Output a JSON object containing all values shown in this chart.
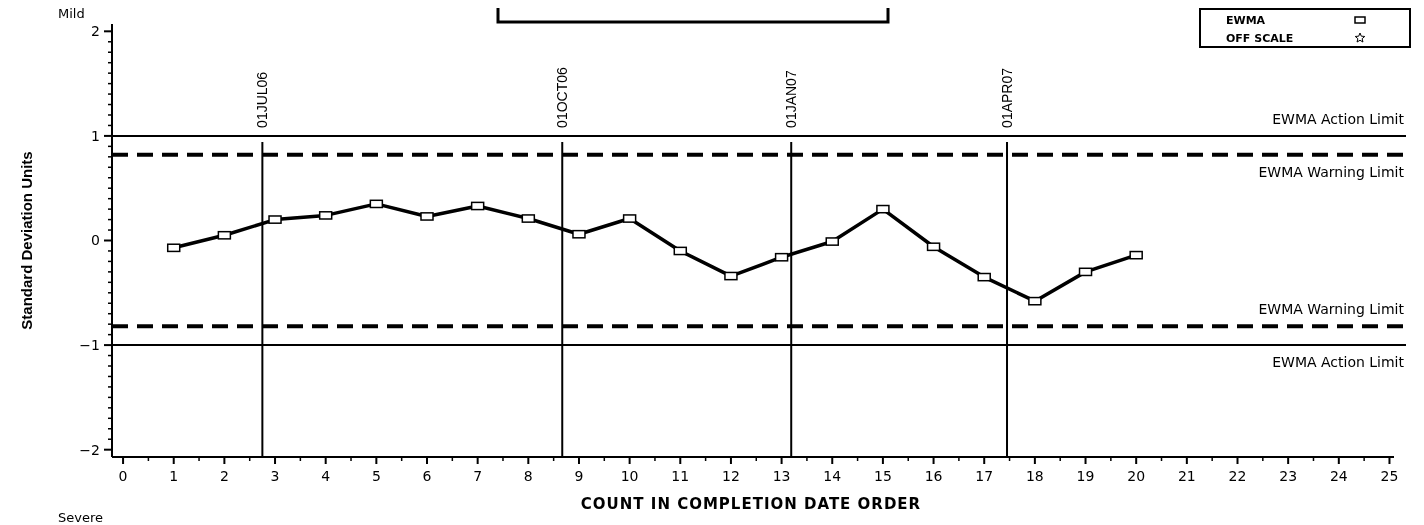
{
  "chart_data": {
    "type": "line",
    "xlabel": "COUNT IN COMPLETION DATE ORDER",
    "ylabel": "Standard Deviation Units",
    "x": [
      1,
      2,
      3,
      4,
      5,
      6,
      7,
      8,
      9,
      10,
      11,
      12,
      13,
      14,
      15,
      16,
      17,
      18,
      19,
      20
    ],
    "series": [
      {
        "name": "EWMA",
        "color": "#000000",
        "marker": "square",
        "values": [
          -0.07,
          0.05,
          0.2,
          0.24,
          0.35,
          0.23,
          0.33,
          0.21,
          0.06,
          0.21,
          -0.1,
          -0.34,
          -0.16,
          -0.01,
          0.3,
          -0.06,
          -0.35,
          -0.58,
          -0.3,
          -0.14
        ]
      },
      {
        "name": "OFF SCALE",
        "color": "#000000",
        "marker": "star",
        "values": [
          null,
          null,
          null,
          null,
          null,
          null,
          null,
          null,
          null,
          null,
          null,
          null,
          null,
          null,
          null,
          null,
          null,
          null,
          null,
          null
        ]
      }
    ],
    "xlim": [
      -0.1,
      25.05
    ],
    "xticks": [
      0,
      1,
      2,
      3,
      4,
      5,
      6,
      7,
      8,
      9,
      10,
      11,
      12,
      13,
      14,
      15,
      16,
      17,
      18,
      19,
      20,
      21,
      22,
      23,
      24,
      25
    ],
    "ylim": [
      -2.07,
      2.07
    ],
    "yticks": [
      {
        "value": -2,
        "label": "−2"
      },
      {
        "value": -1,
        "label": "−1"
      },
      0,
      1,
      2
    ],
    "ref_lines": [
      {
        "axis": "y",
        "value": 1,
        "label": "EWMA Action Limit",
        "line_style": "solid"
      },
      {
        "axis": "y",
        "value": 0.82,
        "label": "EWMA Warning Limit",
        "line_style": "dashed"
      },
      {
        "axis": "y",
        "value": -0.82,
        "label": "EWMA Warning Limit",
        "line_style": "dashed"
      },
      {
        "axis": "y",
        "value": -1,
        "label": "EWMA Action Limit",
        "line_style": "solid"
      },
      {
        "axis": "x",
        "value": 2.75,
        "label": "01JUL06"
      },
      {
        "axis": "x",
        "value": 8.67,
        "label": "01OCT06"
      },
      {
        "axis": "x",
        "value": 13.19,
        "label": "01JAN07"
      },
      {
        "axis": "x",
        "value": 17.45,
        "label": "01APR07"
      }
    ],
    "annotations": [
      "Mild",
      "Severe"
    ],
    "legend": "top right",
    "line_style": "solid"
  }
}
